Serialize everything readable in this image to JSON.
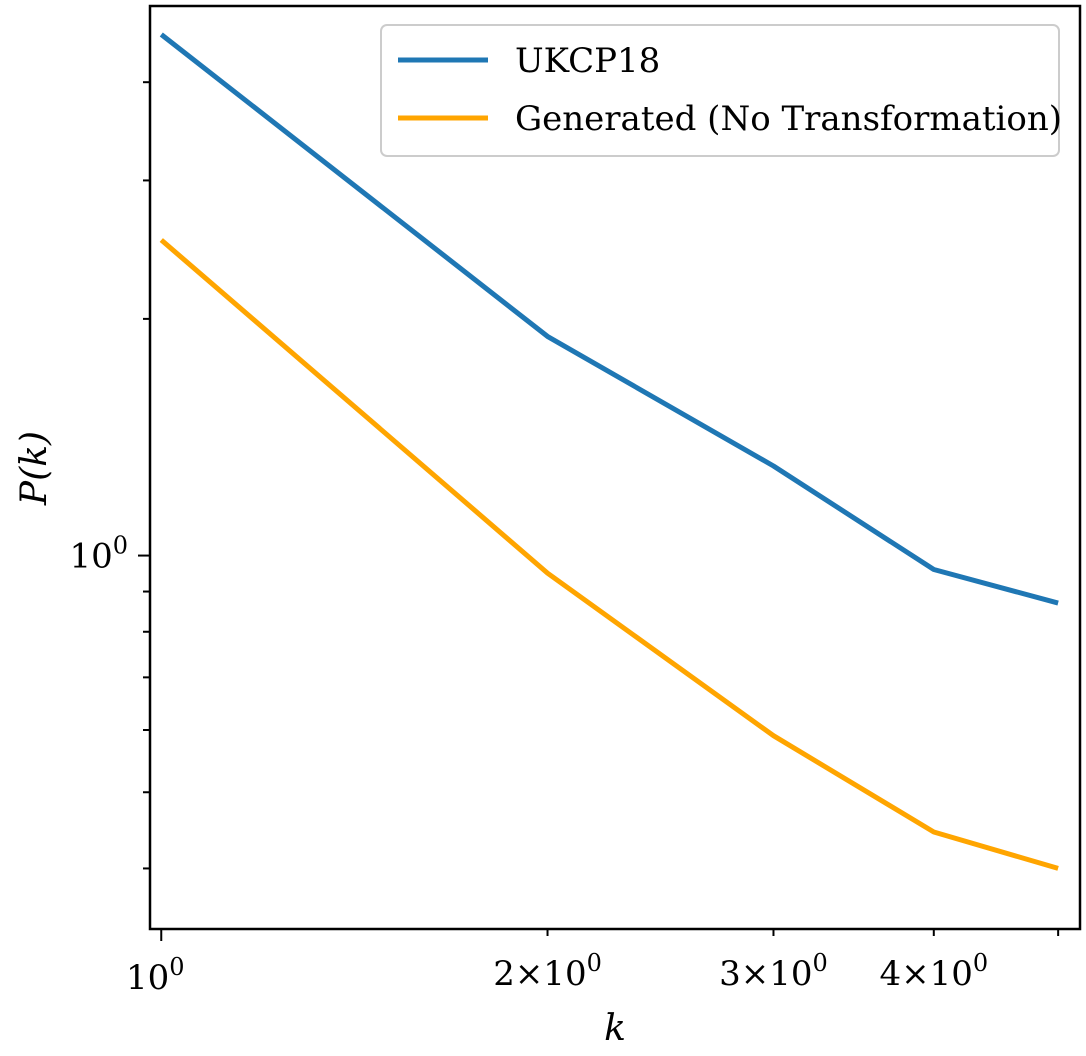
{
  "chart_data": {
    "type": "line",
    "xlabel": "k",
    "ylabel": "P(k)",
    "xscale": "log",
    "yscale": "log",
    "x": [
      1,
      2,
      3,
      4,
      5
    ],
    "xlim": [
      0.98,
      5.2
    ],
    "ylim": [
      0.335,
      5.0
    ],
    "x_major_ticks": [
      {
        "value": 1,
        "mantissa": "",
        "exponent": "0"
      }
    ],
    "x_minor_ticks": [
      {
        "value": 2,
        "mantissa": "2",
        "exponent": "0"
      },
      {
        "value": 3,
        "mantissa": "3",
        "exponent": "0"
      },
      {
        "value": 4,
        "mantissa": "4",
        "exponent": "0"
      },
      {
        "value": 5,
        "mantissa": "",
        "exponent": ""
      }
    ],
    "y_major_ticks": [
      {
        "value": 1,
        "exponent": "0"
      }
    ],
    "y_minor_ticks": [
      0.4,
      0.5,
      0.6,
      0.7,
      0.8,
      0.9,
      2,
      3,
      4
    ],
    "grid": false,
    "legend_position": "top-right",
    "series": [
      {
        "name": "UKCP18",
        "color": "#1f77b4",
        "values": [
          4.6,
          1.9,
          1.3,
          0.96,
          0.87
        ]
      },
      {
        "name": "Generated (No Transformation)",
        "color": "#ffa500",
        "values": [
          2.52,
          0.95,
          0.59,
          0.445,
          0.4
        ]
      }
    ]
  }
}
